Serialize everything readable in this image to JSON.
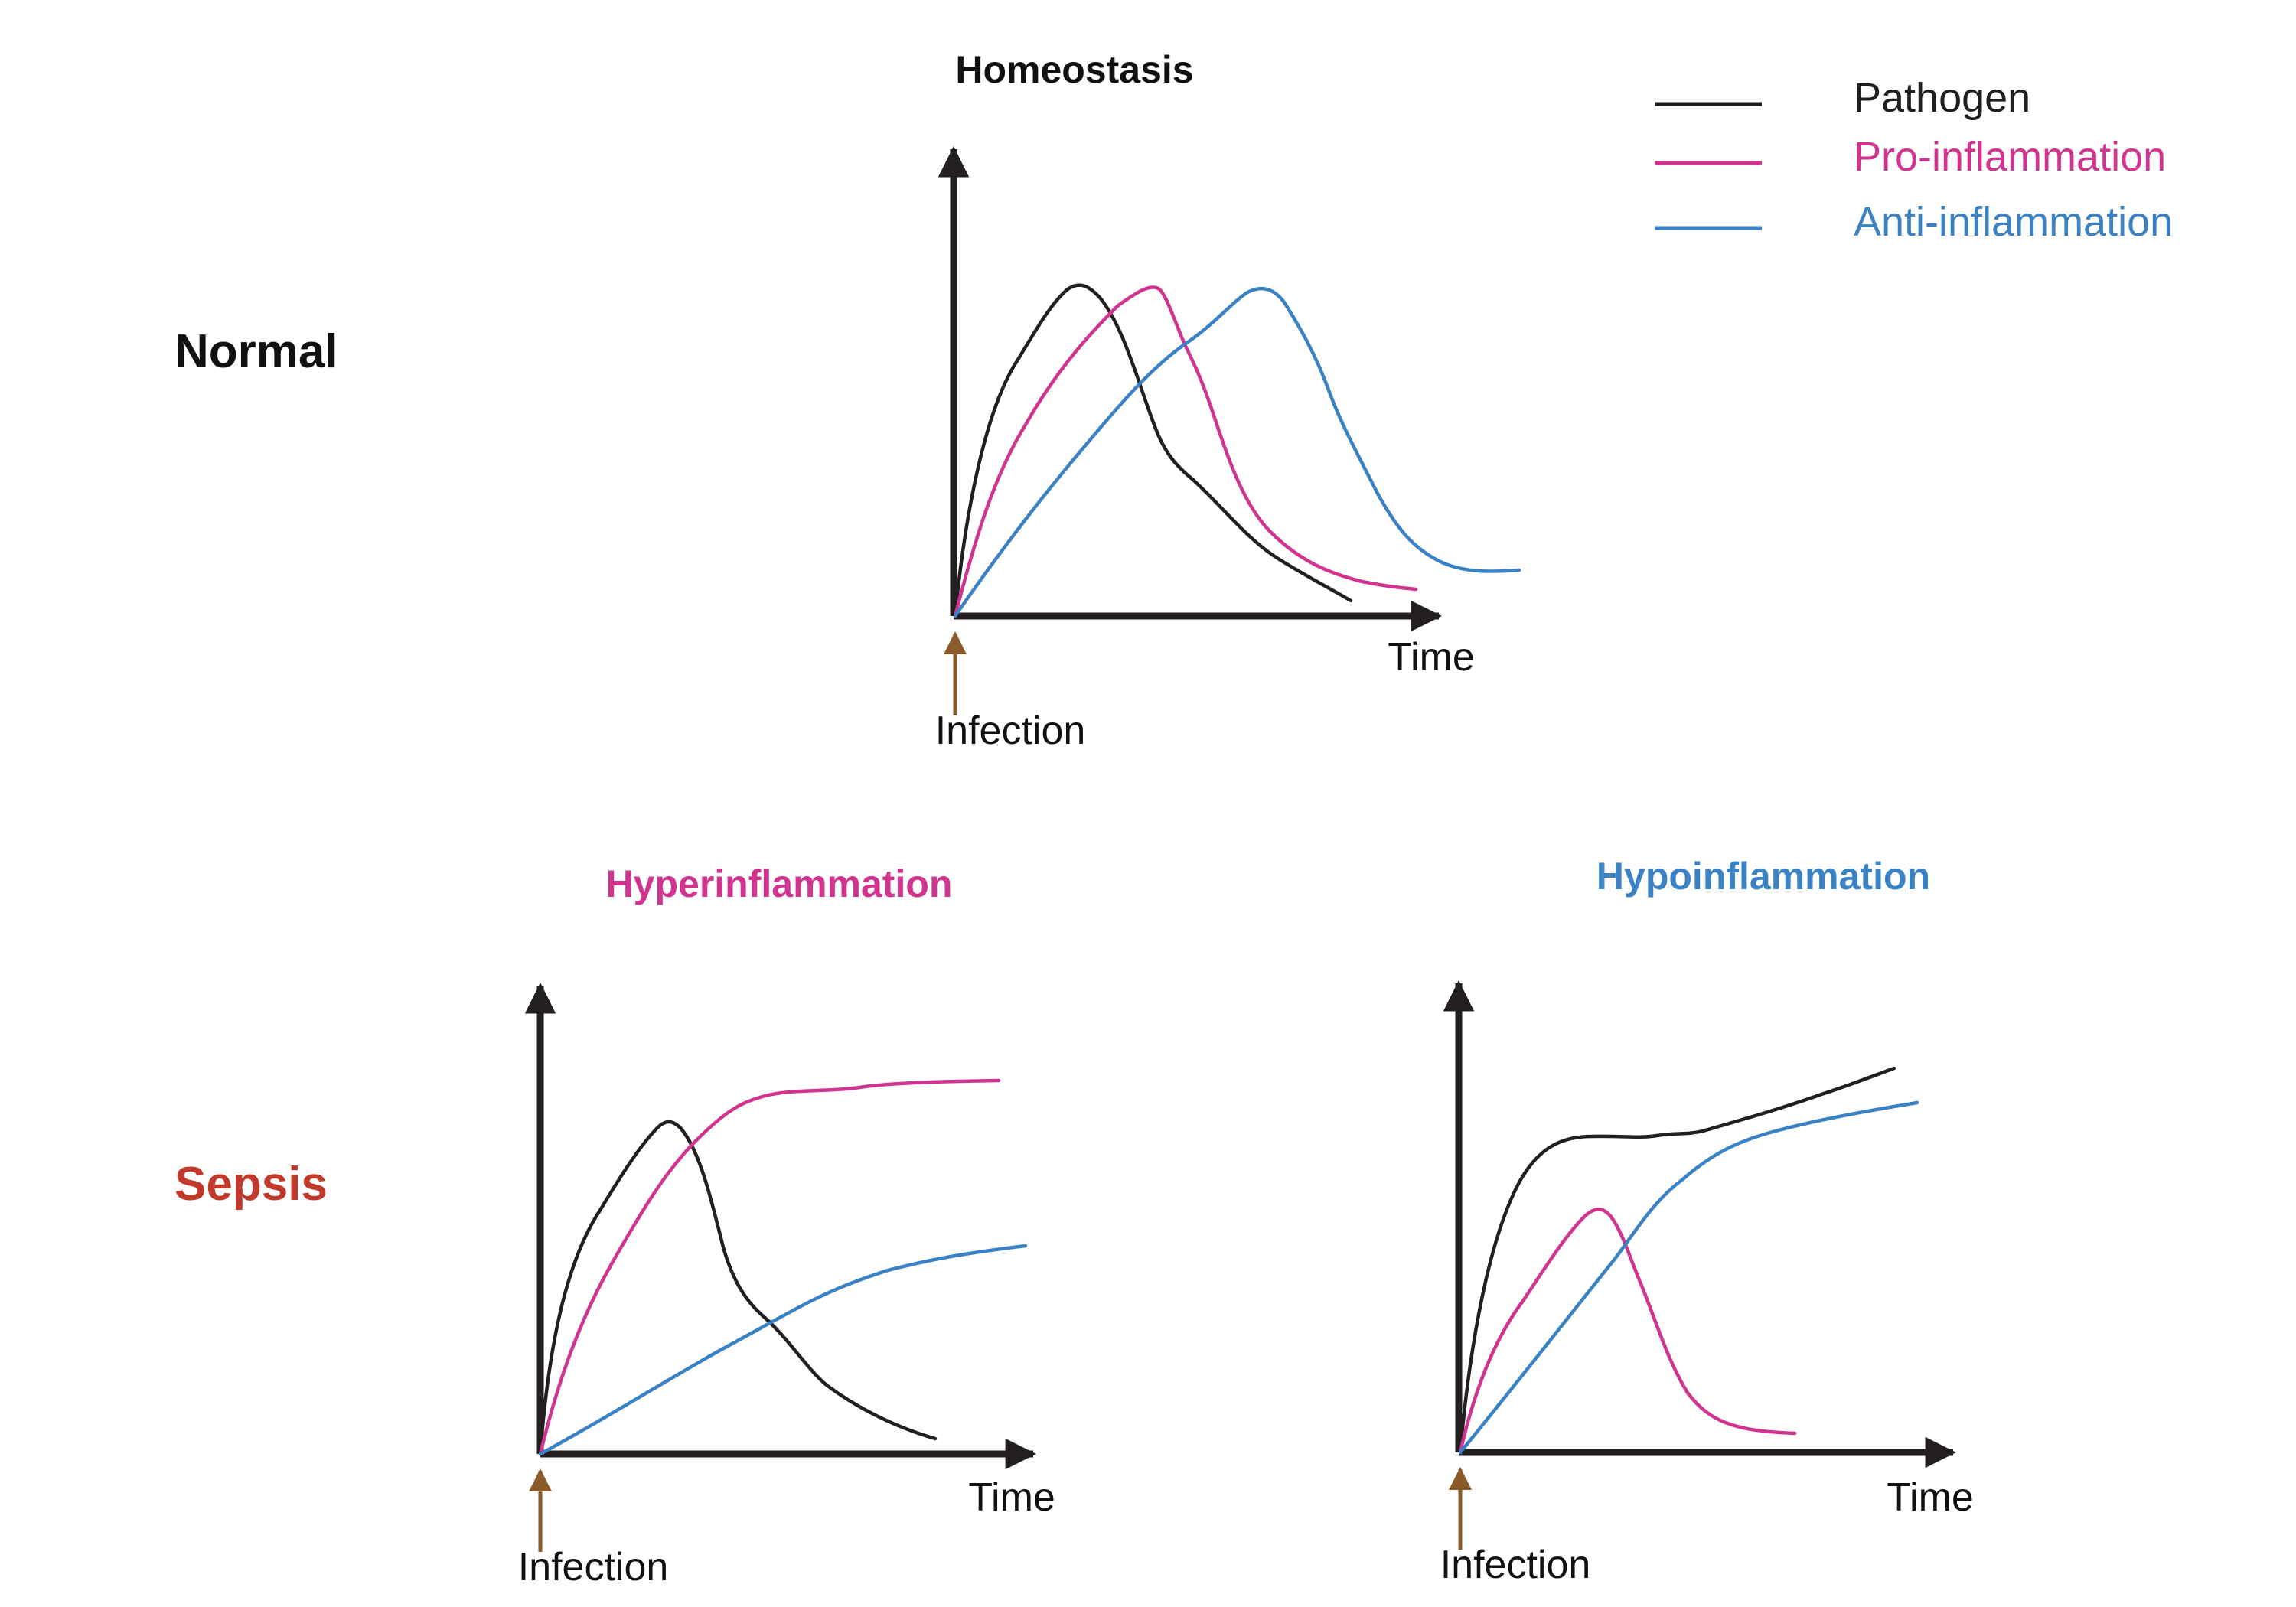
{
  "row_labels": {
    "normal": "Normal",
    "sepsis": "Sepsis"
  },
  "legend": {
    "items": [
      {
        "key": "pathogen",
        "label": "Pathogen",
        "color": "#231f20"
      },
      {
        "key": "pro",
        "label": "Pro-inflammation",
        "color": "#d1348f"
      },
      {
        "key": "anti",
        "label": "Anti-inflammation",
        "color": "#3b82c4"
      }
    ]
  },
  "colors": {
    "axis": "#231f20",
    "infection_arrow": "#8b5a2b",
    "normal_label": "#111111",
    "sepsis_label": "#c0392b",
    "hyper_title": "#d1348f",
    "hypo_title": "#3b82c4"
  },
  "panels": {
    "homeostasis": {
      "title": "Homeostasis",
      "x_label": "Time",
      "marker_label": "Infection"
    },
    "hyper": {
      "title": "Hyperinflammation",
      "x_label": "Time",
      "marker_label": "Infection"
    },
    "hypo": {
      "title": "Hypoinflammation",
      "x_label": "Time",
      "marker_label": "Infection"
    }
  }
}
